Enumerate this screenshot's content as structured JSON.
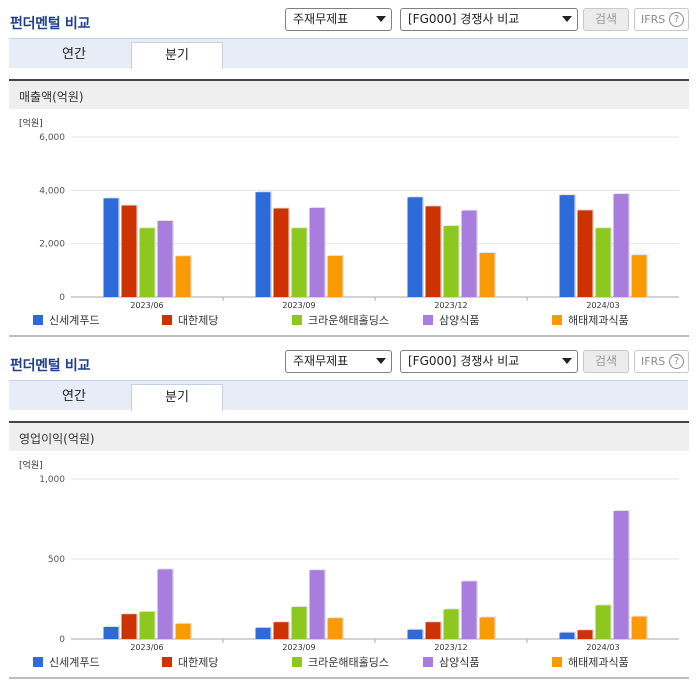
{
  "panels": [
    {
      "title": "펀더멘털 비교",
      "select1": "주재무제표",
      "select2": "[FG000] 경쟁사 비교",
      "search": "검색",
      "ifrs": "IFRS",
      "ifrs_help": "?",
      "tabs": [
        "연간",
        "분기"
      ],
      "active_tab": "분기",
      "metric": "매출액(억원)",
      "chart_data": {
        "type": "bar",
        "unit": "[억원]",
        "categories": [
          "2023/06",
          "2023/09",
          "2023/12",
          "2024/03"
        ],
        "ylim": [
          0,
          6000
        ],
        "yticks": [
          0,
          2000,
          4000,
          6000
        ],
        "ytick_labels": [
          "0",
          "2,000",
          "4,000",
          "6,000"
        ],
        "grid": true,
        "legend_position": "bottom",
        "series": [
          {
            "name": "신세계푸드",
            "color": "#2d6bdb",
            "values": [
              3700,
              3930,
              3740,
              3820
            ]
          },
          {
            "name": "대한제당",
            "color": "#cc3300",
            "values": [
              3430,
              3320,
              3400,
              3250
            ]
          },
          {
            "name": "크라운해태홀딩스",
            "color": "#8cc81e",
            "values": [
              2580,
              2580,
              2660,
              2580
            ]
          },
          {
            "name": "삼양식품",
            "color": "#a97ddd",
            "values": [
              2850,
              3340,
              3240,
              3860
            ]
          },
          {
            "name": "해태제과식품",
            "color": "#fa9a05",
            "values": [
              1530,
              1540,
              1650,
              1570
            ]
          }
        ]
      }
    },
    {
      "title": "펀더멘털 비교",
      "select1": "주재무제표",
      "select2": "[FG000] 경쟁사 비교",
      "search": "검색",
      "ifrs": "IFRS",
      "ifrs_help": "?",
      "tabs": [
        "연간",
        "분기"
      ],
      "active_tab": "분기",
      "metric": "영업이익(억원)",
      "chart_data": {
        "type": "bar",
        "unit": "[억원]",
        "categories": [
          "2023/06",
          "2023/09",
          "2023/12",
          "2024/03"
        ],
        "ylim": [
          0,
          1000
        ],
        "yticks": [
          0,
          500,
          1000
        ],
        "ytick_labels": [
          "0",
          "500",
          "1,000"
        ],
        "grid": true,
        "legend_position": "bottom",
        "series": [
          {
            "name": "신세계푸드",
            "color": "#2d6bdb",
            "values": [
              75,
              70,
              58,
              40
            ]
          },
          {
            "name": "대한제당",
            "color": "#cc3300",
            "values": [
              155,
              105,
              105,
              55
            ]
          },
          {
            "name": "크라운해태홀딩스",
            "color": "#8cc81e",
            "values": [
              170,
              200,
              185,
              210
            ]
          },
          {
            "name": "삼양식품",
            "color": "#a97ddd",
            "values": [
              435,
              430,
              360,
              800
            ]
          },
          {
            "name": "해태제과식품",
            "color": "#fa9a05",
            "values": [
              95,
              130,
              135,
              140
            ]
          }
        ]
      }
    }
  ]
}
